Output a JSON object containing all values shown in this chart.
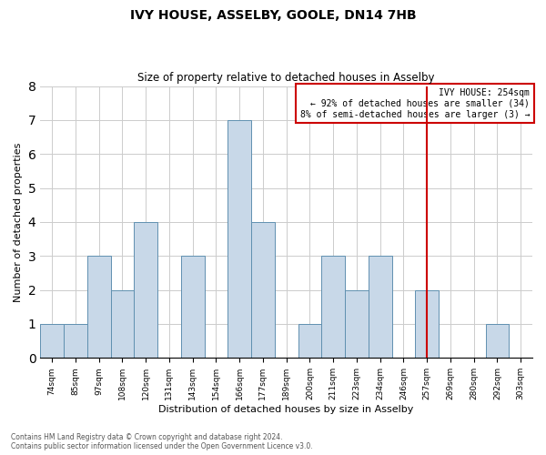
{
  "title": "IVY HOUSE, ASSELBY, GOOLE, DN14 7HB",
  "subtitle": "Size of property relative to detached houses in Asselby",
  "xlabel": "Distribution of detached houses by size in Asselby",
  "ylabel": "Number of detached properties",
  "categories": [
    "74sqm",
    "85sqm",
    "97sqm",
    "108sqm",
    "120sqm",
    "131sqm",
    "143sqm",
    "154sqm",
    "166sqm",
    "177sqm",
    "189sqm",
    "200sqm",
    "211sqm",
    "223sqm",
    "234sqm",
    "246sqm",
    "257sqm",
    "269sqm",
    "280sqm",
    "292sqm",
    "303sqm"
  ],
  "values": [
    1,
    1,
    3,
    2,
    4,
    0,
    3,
    0,
    7,
    4,
    0,
    1,
    3,
    2,
    3,
    0,
    2,
    0,
    0,
    1,
    0
  ],
  "bar_color": "#c8d8e8",
  "bar_edge_color": "#6090b0",
  "ylim": [
    0,
    8
  ],
  "yticks": [
    0,
    1,
    2,
    3,
    4,
    5,
    6,
    7,
    8
  ],
  "marker_label": "IVY HOUSE: 254sqm",
  "marker_line_color": "#cc0000",
  "marker_line_index": 16,
  "annotation_line1": "← 92% of detached houses are smaller (34)",
  "annotation_line2": "8% of semi-detached houses are larger (3) →",
  "annotation_box_color": "#cc0000",
  "footnote1": "Contains HM Land Registry data © Crown copyright and database right 2024.",
  "footnote2": "Contains public sector information licensed under the Open Government Licence v3.0.",
  "background_color": "#ffffff",
  "grid_color": "#cccccc"
}
